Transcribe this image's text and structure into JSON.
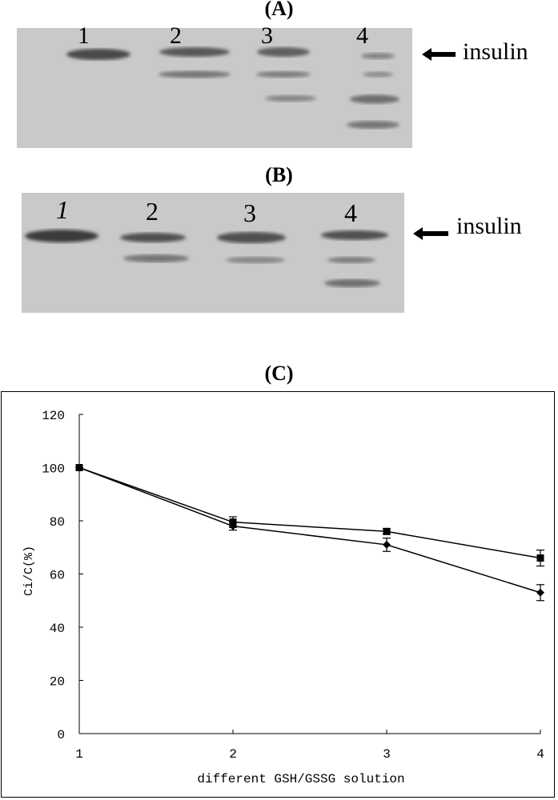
{
  "panels": {
    "a": {
      "label": "(A)",
      "lane_numbers": [
        "1",
        "2",
        "3",
        "4"
      ],
      "marker": "insulin",
      "bands": [
        {
          "lane": 1,
          "strength": 0.85
        },
        {
          "lane": 2,
          "strength": 0.75
        },
        {
          "lane": 2,
          "strength": 0.55
        },
        {
          "lane": 3,
          "strength": 0.7
        },
        {
          "lane": 3,
          "strength": 0.5
        },
        {
          "lane": 3,
          "strength": 0.45
        },
        {
          "lane": 4,
          "strength": 0.45
        },
        {
          "lane": 4,
          "strength": 0.4
        },
        {
          "lane": 4,
          "strength": 0.6
        },
        {
          "lane": 4,
          "strength": 0.55
        }
      ]
    },
    "b": {
      "label": "(B)",
      "lane_numbers": [
        "1",
        "2",
        "3",
        "4"
      ],
      "marker": "insulin",
      "bands": [
        {
          "lane": 1,
          "strength": 0.95
        },
        {
          "lane": 2,
          "strength": 0.8
        },
        {
          "lane": 2,
          "strength": 0.55
        },
        {
          "lane": 3,
          "strength": 0.8
        },
        {
          "lane": 3,
          "strength": 0.45
        },
        {
          "lane": 4,
          "strength": 0.8
        },
        {
          "lane": 4,
          "strength": 0.5
        },
        {
          "lane": 4,
          "strength": 0.6
        }
      ]
    }
  },
  "chart_panel_label": "(C)",
  "chart_data": {
    "type": "line",
    "title": "",
    "xlabel": "different GSH/GSSG solution",
    "ylabel": "Ci/C(%)",
    "x": [
      1,
      2,
      3,
      4
    ],
    "xlim": [
      1,
      4
    ],
    "ylim": [
      0,
      120
    ],
    "x_ticks": [
      "1",
      "2",
      "3",
      "4"
    ],
    "y_ticks": [
      "0",
      "20",
      "40",
      "60",
      "80",
      "100",
      "120"
    ],
    "grid": false,
    "legend": "none",
    "series": [
      {
        "marker": "square",
        "values": [
          100,
          79.5,
          76,
          66
        ],
        "errors": [
          0,
          2,
          1,
          3
        ]
      },
      {
        "marker": "diamond",
        "values": [
          100,
          78,
          71,
          53
        ],
        "errors": [
          0,
          1.5,
          2.5,
          3
        ]
      }
    ]
  }
}
